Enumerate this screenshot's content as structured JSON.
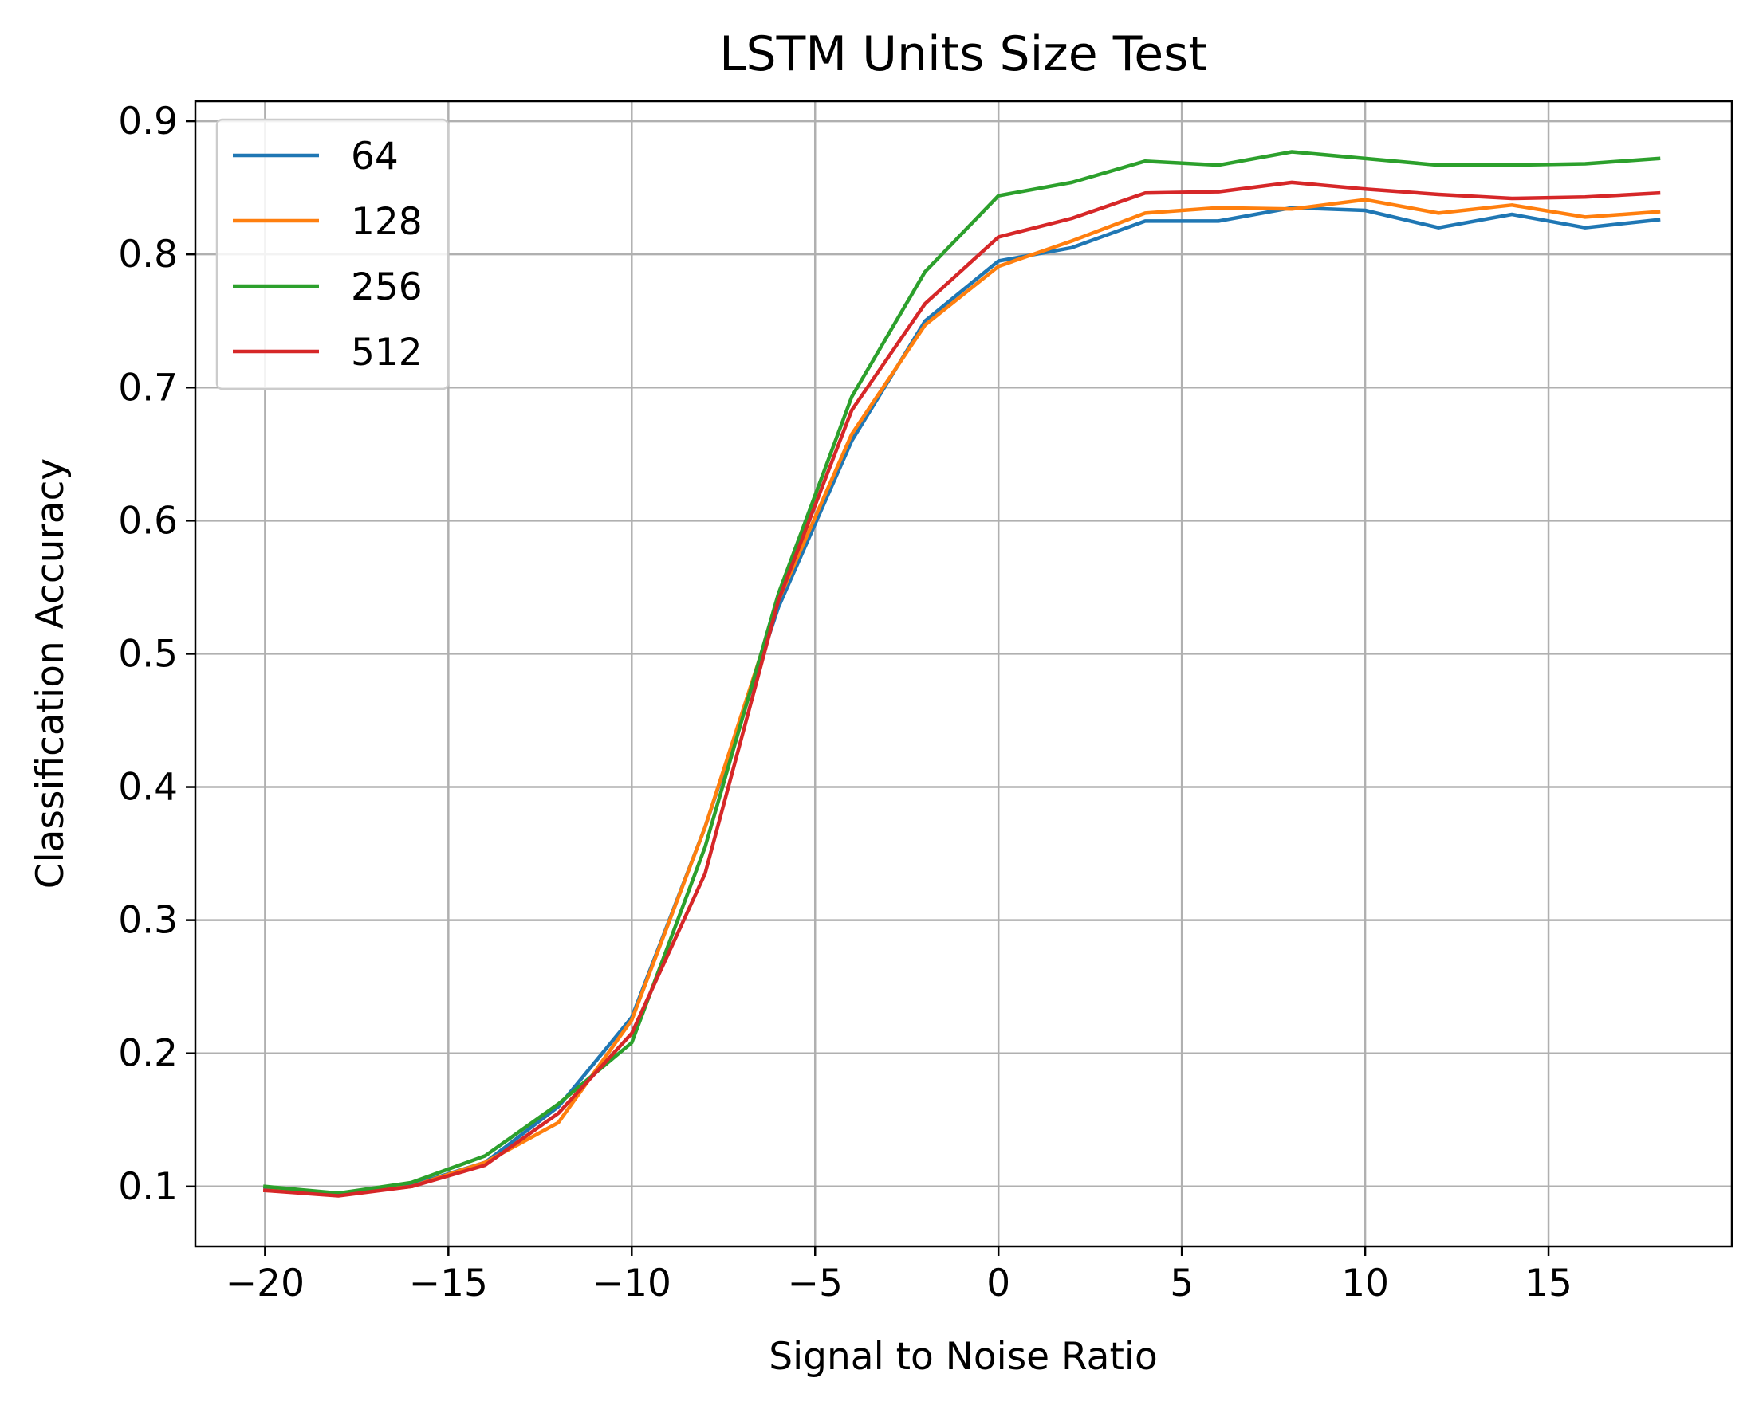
{
  "chart_data": {
    "type": "line",
    "title": "LSTM Units Size Test",
    "xlabel": "Signal to Noise Ratio",
    "ylabel": "Classification Accuracy",
    "xlim": [
      -21.9,
      20.0
    ],
    "ylim": [
      0.055,
      0.915
    ],
    "xticks": [
      -20,
      -15,
      -10,
      -5,
      0,
      5,
      10,
      15
    ],
    "xtick_labels": [
      "−20",
      "−15",
      "−10",
      "−5",
      "0",
      "5",
      "10",
      "15"
    ],
    "yticks": [
      0.1,
      0.2,
      0.3,
      0.4,
      0.5,
      0.6,
      0.7,
      0.8,
      0.9
    ],
    "ytick_labels": [
      "0.1",
      "0.2",
      "0.3",
      "0.4",
      "0.5",
      "0.6",
      "0.7",
      "0.8",
      "0.9"
    ],
    "grid": true,
    "legend_position": "top-left",
    "x": [
      -20,
      -18,
      -16,
      -14,
      -12,
      -10,
      -8,
      -6,
      -4,
      -2,
      0,
      2,
      4,
      6,
      8,
      10,
      12,
      14,
      16,
      18
    ],
    "series": [
      {
        "name": "64",
        "color": "#1f77b4",
        "values": [
          0.098,
          0.095,
          0.101,
          0.118,
          0.16,
          0.227,
          0.37,
          0.535,
          0.66,
          0.75,
          0.795,
          0.805,
          0.825,
          0.825,
          0.835,
          0.833,
          0.82,
          0.83,
          0.82,
          0.826
        ]
      },
      {
        "name": "128",
        "color": "#ff7f0e",
        "values": [
          0.097,
          0.094,
          0.1,
          0.118,
          0.148,
          0.225,
          0.37,
          0.54,
          0.665,
          0.747,
          0.791,
          0.81,
          0.831,
          0.835,
          0.834,
          0.841,
          0.831,
          0.837,
          0.828,
          0.832
        ]
      },
      {
        "name": "256",
        "color": "#2ca02c",
        "values": [
          0.1,
          0.095,
          0.103,
          0.123,
          0.162,
          0.208,
          0.355,
          0.545,
          0.693,
          0.787,
          0.844,
          0.854,
          0.87,
          0.867,
          0.877,
          0.872,
          0.867,
          0.867,
          0.868,
          0.872
        ]
      },
      {
        "name": "512",
        "color": "#d62728",
        "values": [
          0.097,
          0.093,
          0.1,
          0.116,
          0.155,
          0.215,
          0.335,
          0.54,
          0.683,
          0.763,
          0.813,
          0.827,
          0.846,
          0.847,
          0.854,
          0.849,
          0.845,
          0.842,
          0.843,
          0.846
        ]
      }
    ]
  }
}
